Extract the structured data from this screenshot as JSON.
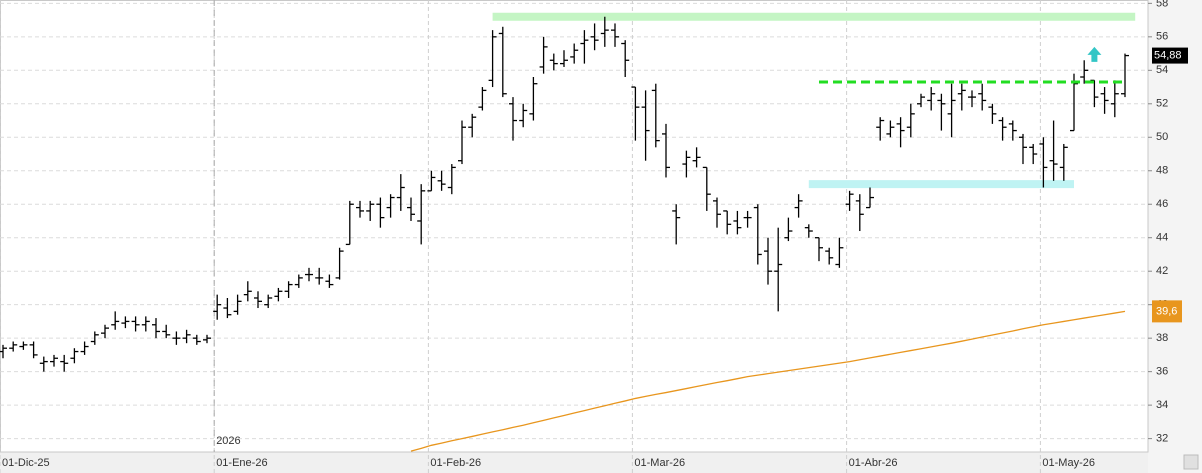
{
  "chart_data": {
    "type": "ohlc",
    "categories": [
      "01-Dic-25",
      null,
      null,
      null,
      null,
      null,
      null,
      null,
      null,
      null,
      null,
      null,
      null,
      null,
      null,
      null,
      null,
      null,
      null,
      null,
      null,
      "01-Ene-26",
      null,
      null,
      null,
      null,
      null,
      null,
      null,
      null,
      null,
      null,
      null,
      null,
      null,
      null,
      null,
      null,
      null,
      null,
      null,
      null,
      "01-Feb-26",
      null,
      null,
      null,
      null,
      null,
      null,
      null,
      null,
      null,
      null,
      null,
      null,
      null,
      null,
      null,
      null,
      null,
      null,
      null,
      "01-Mar-26",
      null,
      null,
      null,
      null,
      null,
      null,
      null,
      null,
      null,
      null,
      null,
      null,
      null,
      null,
      null,
      null,
      null,
      null,
      null,
      null,
      "01-Abr-26",
      null,
      null,
      null,
      null,
      null,
      null,
      null,
      null,
      null,
      null,
      null,
      null,
      null,
      null,
      null,
      null,
      null,
      null,
      "01-May-26",
      null,
      null,
      null,
      null,
      null,
      null,
      null,
      null
    ],
    "price": {
      "color": "#000000",
      "last_label": "54,88",
      "open": [
        37.2,
        37.4,
        37.5,
        37.6,
        36.5,
        36.6,
        36.6,
        36.8,
        37.2,
        37.8,
        38.3,
        38.8,
        38.9,
        39.0,
        38.8,
        38.8,
        38.4,
        38.0,
        38.0,
        38.0,
        37.9,
        39.6,
        39.8,
        39.6,
        40.6,
        40.4,
        40.0,
        40.5,
        40.8,
        41.2,
        41.8,
        41.6,
        41.4,
        41.6,
        43.6,
        45.8,
        45.6,
        46.0,
        45.8,
        46.4,
        45.8,
        45.0,
        46.8,
        47.4,
        47.0,
        48.6,
        50.6,
        51.8,
        53.4,
        56.2,
        52.0,
        51.0,
        51.4,
        54.2,
        54.6,
        54.4,
        54.8,
        55.6,
        56.0,
        56.2,
        56.4,
        55.6,
        53.0,
        51.8,
        52.8,
        50.2,
        45.6,
        48.4,
        48.6,
        48.2,
        46.2,
        45.6,
        45.0,
        45.2,
        45.8,
        43.2,
        42.0,
        44.0,
        45.8,
        44.6,
        44.0,
        43.2,
        42.4,
        46.0,
        46.2,
        45.8,
        50.6,
        50.2,
        50.8,
        50.6,
        52.0,
        52.2,
        52.2,
        51.4,
        52.6,
        52.4,
        52.6,
        51.8,
        51.0,
        50.8,
        50.0,
        49.4,
        49.6,
        48.6,
        48.2,
        50.4,
        53.6,
        53.4,
        52.6,
        52.0,
        52.6
      ],
      "high": [
        37.6,
        37.8,
        37.8,
        37.8,
        36.9,
        37.0,
        37.0,
        37.4,
        37.8,
        38.4,
        38.8,
        39.6,
        39.3,
        39.3,
        39.3,
        39.2,
        38.8,
        38.4,
        38.5,
        38.2,
        38.2,
        40.6,
        40.4,
        40.6,
        41.4,
        40.8,
        40.6,
        41.0,
        41.4,
        41.8,
        42.2,
        42.2,
        41.8,
        43.4,
        46.2,
        46.2,
        46.2,
        46.4,
        46.6,
        47.8,
        46.4,
        47.2,
        48.0,
        48.0,
        48.4,
        51.0,
        51.4,
        53.0,
        56.4,
        56.6,
        52.4,
        52.0,
        53.6,
        56.0,
        55.0,
        55.2,
        55.6,
        56.4,
        56.8,
        57.2,
        56.8,
        55.8,
        53.0,
        52.8,
        53.2,
        50.8,
        46.0,
        49.2,
        49.4,
        48.2,
        46.4,
        45.6,
        45.6,
        45.6,
        46.0,
        44.0,
        44.6,
        45.2,
        46.6,
        44.8,
        44.0,
        43.4,
        44.0,
        46.8,
        46.6,
        47.0,
        51.2,
        51.0,
        51.2,
        52.0,
        52.6,
        53.0,
        52.6,
        53.2,
        53.2,
        52.8,
        53.2,
        52.0,
        51.2,
        51.0,
        50.2,
        49.6,
        50.0,
        51.0,
        49.6,
        53.8,
        54.6,
        53.4,
        53.0,
        53.4,
        55.0
      ],
      "low": [
        36.8,
        37.2,
        37.3,
        36.8,
        36.0,
        36.3,
        36.0,
        36.5,
        37.0,
        37.6,
        38.0,
        38.5,
        38.6,
        38.4,
        38.4,
        38.0,
        38.0,
        37.6,
        37.7,
        37.6,
        37.7,
        39.1,
        39.2,
        39.4,
        40.2,
        39.8,
        39.8,
        40.2,
        40.4,
        41.0,
        41.4,
        41.2,
        41.0,
        41.5,
        43.6,
        45.2,
        45.0,
        44.6,
        45.2,
        45.6,
        45.0,
        43.6,
        46.8,
        46.8,
        46.6,
        48.4,
        50.0,
        51.6,
        53.0,
        52.4,
        49.8,
        50.6,
        51.0,
        53.8,
        54.0,
        54.2,
        54.4,
        54.4,
        55.2,
        55.4,
        55.4,
        53.6,
        49.8,
        48.6,
        49.4,
        47.6,
        43.6,
        47.6,
        48.2,
        45.6,
        44.6,
        44.2,
        44.2,
        44.6,
        42.4,
        41.2,
        39.6,
        43.8,
        45.2,
        44.0,
        42.6,
        42.4,
        42.2,
        45.6,
        44.4,
        45.8,
        49.8,
        50.0,
        49.4,
        50.0,
        51.8,
        51.6,
        50.4,
        50.0,
        51.6,
        51.8,
        51.6,
        50.8,
        49.8,
        49.8,
        48.4,
        48.4,
        47.0,
        47.4,
        47.4,
        50.4,
        53.2,
        51.8,
        51.4,
        51.2,
        52.4
      ],
      "close": [
        37.4,
        37.6,
        37.6,
        37.0,
        36.6,
        36.8,
        36.5,
        37.2,
        37.5,
        38.2,
        38.6,
        39.0,
        39.0,
        38.8,
        39.0,
        38.4,
        38.2,
        38.0,
        38.2,
        37.8,
        38.0,
        40.0,
        39.4,
        40.2,
        40.8,
        40.2,
        40.4,
        40.8,
        41.2,
        41.6,
        41.8,
        41.6,
        41.2,
        43.2,
        46.0,
        45.6,
        46.0,
        45.2,
        46.4,
        47.0,
        45.4,
        46.8,
        47.6,
        47.2,
        48.2,
        50.6,
        51.2,
        52.8,
        56.0,
        52.6,
        51.0,
        51.6,
        53.2,
        55.4,
        54.4,
        54.6,
        55.2,
        55.8,
        55.8,
        56.4,
        56.0,
        54.6,
        51.8,
        50.4,
        49.8,
        48.2,
        45.2,
        48.8,
        48.8,
        46.6,
        45.4,
        44.8,
        44.6,
        45.2,
        43.0,
        42.0,
        42.4,
        44.4,
        46.2,
        44.4,
        43.4,
        42.8,
        43.4,
        46.6,
        45.4,
        46.4,
        51.0,
        50.6,
        50.4,
        51.4,
        52.4,
        52.6,
        52.0,
        52.2,
        52.8,
        52.4,
        52.2,
        51.4,
        50.6,
        50.4,
        49.4,
        49.0,
        48.2,
        48.4,
        49.4,
        53.2,
        54.0,
        52.4,
        52.2,
        52.6,
        54.88
      ]
    },
    "moving_average": {
      "color": "#e8961e",
      "last_label": "39,6",
      "values": [
        null,
        null,
        null,
        null,
        null,
        null,
        null,
        null,
        null,
        null,
        null,
        null,
        null,
        null,
        null,
        null,
        null,
        null,
        null,
        null,
        null,
        null,
        null,
        null,
        null,
        null,
        null,
        null,
        null,
        null,
        null,
        null,
        null,
        null,
        null,
        null,
        null,
        null,
        null,
        null,
        31.25,
        31.42,
        31.6,
        31.73,
        31.87,
        32.0,
        32.13,
        32.27,
        32.4,
        32.53,
        32.67,
        32.8,
        32.95,
        33.09,
        33.24,
        33.38,
        33.53,
        33.67,
        33.82,
        33.96,
        34.11,
        34.25,
        34.4,
        34.52,
        34.64,
        34.75,
        34.87,
        34.99,
        35.11,
        35.23,
        35.35,
        35.46,
        35.58,
        35.7,
        35.79,
        35.88,
        35.97,
        36.06,
        36.15,
        36.24,
        36.33,
        36.42,
        36.51,
        36.6,
        36.71,
        36.82,
        36.93,
        37.04,
        37.15,
        37.26,
        37.37,
        37.48,
        37.59,
        37.7,
        37.82,
        37.94,
        38.07,
        38.19,
        38.31,
        38.43,
        38.56,
        38.68,
        38.8,
        38.9,
        39.0,
        39.1,
        39.2,
        39.3,
        39.4,
        39.5,
        39.6
      ]
    },
    "levels": [
      {
        "value": 57.2,
        "from": 48,
        "to": 111,
        "color": "#c4f5c4",
        "style": "band"
      },
      {
        "value": 53.3,
        "from": 80,
        "to": 110,
        "color": "#22dd22",
        "style": "dashed"
      },
      {
        "value": 47.2,
        "from": 79,
        "to": 105,
        "color": "#bff3f3",
        "style": "band"
      }
    ],
    "arrow": {
      "x": 107,
      "value": 55.4,
      "color": "#33c6c6"
    },
    "annotations": [
      {
        "text": "2026",
        "x": 21
      }
    ],
    "ylim": [
      31.2,
      58.2
    ],
    "yticks": [
      32,
      34,
      36,
      38,
      40,
      42,
      44,
      46,
      48,
      50,
      52,
      54,
      56,
      58
    ],
    "grid": true
  }
}
